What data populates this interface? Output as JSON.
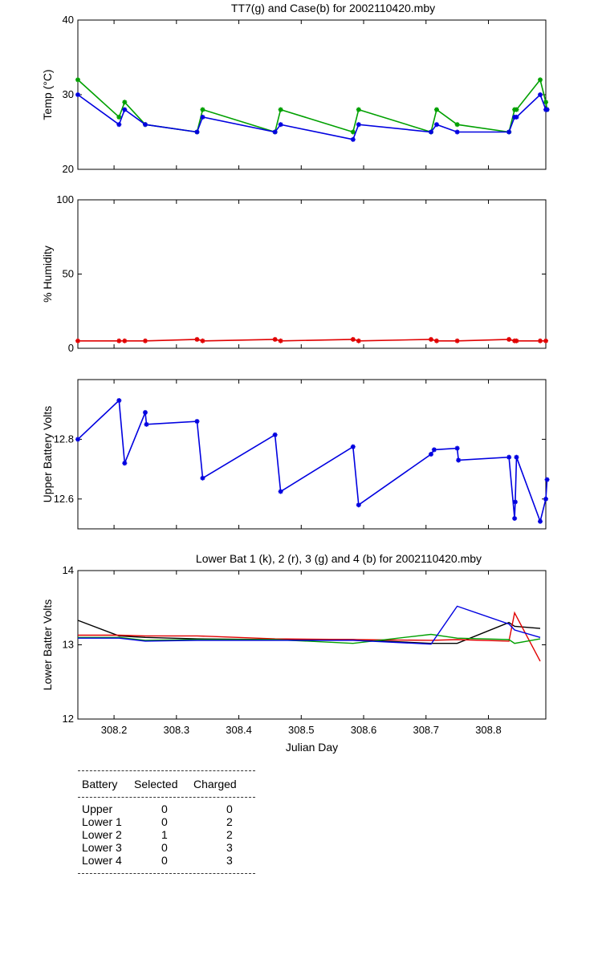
{
  "chart_data": [
    {
      "type": "line",
      "title": "TT7(g) and Case(b) for 2002110420.mby",
      "xlabel": "",
      "ylabel": "Temp  (°C)",
      "xlim": [
        308.142,
        308.892
      ],
      "ylim": [
        20,
        40
      ],
      "yticks": [
        20,
        30,
        40
      ],
      "ytick_labels": [
        "20",
        "30",
        "40"
      ],
      "xticks_shown": false,
      "grid": false,
      "markers": true,
      "series": [
        {
          "color": "#00a000",
          "x": [
            308.142,
            308.208,
            308.217,
            308.25,
            308.333,
            308.342,
            308.458,
            308.467,
            308.583,
            308.592,
            308.708,
            308.717,
            308.75,
            308.833,
            308.842,
            308.845,
            308.883,
            308.892,
            308.894
          ],
          "y": [
            32,
            27,
            29,
            26,
            25,
            28,
            25,
            28,
            25,
            28,
            25,
            28,
            26,
            25,
            28,
            28,
            32,
            29,
            28
          ]
        },
        {
          "color": "#0000e0",
          "x": [
            308.142,
            308.208,
            308.217,
            308.25,
            308.333,
            308.342,
            308.458,
            308.467,
            308.583,
            308.592,
            308.708,
            308.717,
            308.75,
            308.833,
            308.842,
            308.845,
            308.883,
            308.892,
            308.894
          ],
          "y": [
            30,
            26,
            28,
            26,
            25,
            27,
            25,
            26,
            24,
            26,
            25,
            26,
            25,
            25,
            27,
            27,
            30,
            28,
            28
          ]
        }
      ]
    },
    {
      "type": "line",
      "title": "",
      "xlabel": "",
      "ylabel": "% Humidity",
      "xlim": [
        308.142,
        308.892
      ],
      "ylim": [
        0,
        100
      ],
      "yticks": [
        0,
        50,
        100
      ],
      "ytick_labels": [
        "0",
        "50",
        "100"
      ],
      "xticks_shown": false,
      "grid": false,
      "markers": true,
      "series": [
        {
          "color": "#e00000",
          "x": [
            308.142,
            308.208,
            308.217,
            308.25,
            308.333,
            308.342,
            308.458,
            308.467,
            308.583,
            308.592,
            308.708,
            308.717,
            308.75,
            308.833,
            308.842,
            308.845,
            308.883,
            308.892
          ],
          "y": [
            5,
            5,
            5,
            5,
            6,
            5,
            6,
            5,
            6,
            5,
            6,
            5,
            5,
            6,
            5,
            5,
            5,
            5
          ]
        }
      ]
    },
    {
      "type": "line",
      "title": "",
      "xlabel": "",
      "ylabel": "Upper Battery Volts",
      "xlim": [
        308.142,
        308.892
      ],
      "ylim": [
        12.5,
        13.0
      ],
      "yticks": [
        12.6,
        12.8
      ],
      "ytick_labels": [
        "12.6",
        "12.8"
      ],
      "xticks_shown": false,
      "grid": false,
      "markers": true,
      "series": [
        {
          "color": "#0000e0",
          "x": [
            308.142,
            308.208,
            308.217,
            308.25,
            308.252,
            308.333,
            308.342,
            308.458,
            308.467,
            308.583,
            308.592,
            308.708,
            308.713,
            308.75,
            308.752,
            308.833,
            308.842,
            308.843,
            308.845,
            308.883,
            308.892,
            308.894
          ],
          "y": [
            12.8,
            12.93,
            12.72,
            12.89,
            12.85,
            12.86,
            12.67,
            12.815,
            12.625,
            12.775,
            12.58,
            12.75,
            12.765,
            12.77,
            12.73,
            12.74,
            12.535,
            12.59,
            12.74,
            12.525,
            12.6,
            12.665
          ]
        }
      ]
    },
    {
      "type": "line",
      "title": "Lower Bat 1 (k), 2 (r), 3 (g) and 4 (b) for 2002110420.mby",
      "xlabel": "Julian Day",
      "ylabel": "Lower Batter Volts",
      "xlim": [
        308.142,
        308.892
      ],
      "ylim": [
        12,
        14
      ],
      "yticks": [
        12,
        13,
        14
      ],
      "ytick_labels": [
        "12",
        "13",
        "14"
      ],
      "xticks": [
        308.2,
        308.3,
        308.4,
        308.5,
        308.6,
        308.7,
        308.8
      ],
      "xtick_labels": [
        "308.2",
        "308.3",
        "308.4",
        "308.5",
        "308.6",
        "308.7",
        "308.8"
      ],
      "grid": false,
      "markers": false,
      "series": [
        {
          "color": "#000000",
          "x": [
            308.142,
            308.208,
            308.25,
            308.333,
            308.458,
            308.583,
            308.708,
            308.75,
            308.833,
            308.842,
            308.883
          ],
          "y": [
            13.33,
            13.12,
            13.1,
            13.08,
            13.07,
            13.07,
            13.02,
            13.02,
            13.3,
            13.25,
            13.22
          ]
        },
        {
          "color": "#e00000",
          "x": [
            308.142,
            308.208,
            308.25,
            308.333,
            308.458,
            308.583,
            308.708,
            308.75,
            308.833,
            308.842,
            308.883
          ],
          "y": [
            13.13,
            13.13,
            13.12,
            13.12,
            13.08,
            13.07,
            13.06,
            13.07,
            13.05,
            13.43,
            12.78
          ]
        },
        {
          "color": "#00a000",
          "x": [
            308.142,
            308.208,
            308.25,
            308.333,
            308.458,
            308.583,
            308.708,
            308.75,
            308.833,
            308.842,
            308.883
          ],
          "y": [
            13.1,
            13.1,
            13.06,
            13.07,
            13.07,
            13.02,
            13.14,
            13.09,
            13.07,
            13.02,
            13.08
          ]
        },
        {
          "color": "#0000e0",
          "x": [
            308.142,
            308.208,
            308.25,
            308.333,
            308.458,
            308.583,
            308.708,
            308.75,
            308.833,
            308.842,
            308.883
          ],
          "y": [
            13.09,
            13.09,
            13.05,
            13.06,
            13.06,
            13.06,
            13.01,
            13.52,
            13.28,
            13.2,
            13.1
          ]
        }
      ]
    }
  ],
  "battery_table": {
    "headers": [
      "Battery",
      "Selected",
      "Charged"
    ],
    "rows": [
      [
        "Upper",
        "0",
        "0"
      ],
      [
        "Lower 1",
        "0",
        "2"
      ],
      [
        "Lower 2",
        "1",
        "2"
      ],
      [
        "Lower 3",
        "0",
        "3"
      ],
      [
        "Lower 4",
        "0",
        "3"
      ]
    ]
  }
}
